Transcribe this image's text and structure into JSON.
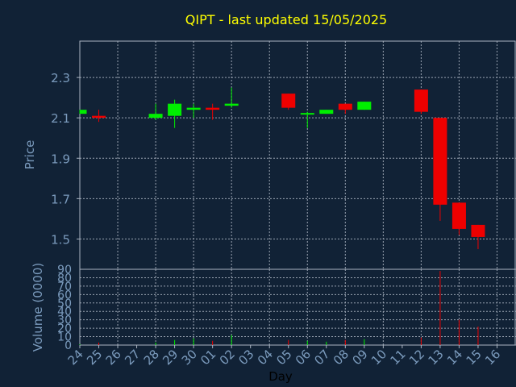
{
  "chart_data": {
    "type": "candlestick",
    "title": "QIPT - last updated 15/05/2025",
    "xlabel": "Day",
    "ylabel_price": "Price",
    "ylabel_volume": "Volume (0000)",
    "x_tick_labels": [
      "24",
      "25",
      "26",
      "27",
      "28",
      "29",
      "30",
      "01",
      "02",
      "03",
      "04",
      "05",
      "06",
      "07",
      "08",
      "09",
      "10",
      "11",
      "12",
      "13",
      "14",
      "15",
      "16"
    ],
    "price_ylim": [
      1.35,
      2.48
    ],
    "price_ticks": [
      1.5,
      1.7,
      1.9,
      2.1,
      2.3
    ],
    "price_tick_labels": [
      "1.5",
      "1.7",
      "1.9",
      "2.1",
      "2.3"
    ],
    "volume_ylim": [
      0,
      90
    ],
    "volume_ticks": [
      0,
      10,
      20,
      30,
      40,
      50,
      60,
      70,
      80,
      90
    ],
    "volume_tick_labels": [
      "0",
      "10",
      "20",
      "30",
      "40",
      "50",
      "60",
      "70",
      "80",
      "90"
    ],
    "grid": true,
    "colors": {
      "background": "#112236",
      "up": "#00ee00",
      "down": "#ee0000",
      "title": "#ffff00",
      "axis_text": "#7b9bbd",
      "axis_line": "#aab4c2",
      "grid": "#9aa4b2"
    },
    "candles": [
      {
        "day": "24",
        "open": 2.12,
        "close": 2.14,
        "high": 2.14,
        "low": 2.12,
        "volume": 1
      },
      {
        "day": "25",
        "open": 2.11,
        "close": 2.1,
        "high": 2.14,
        "low": 2.08,
        "volume": 3
      },
      {
        "day": "28",
        "open": 2.1,
        "close": 2.12,
        "high": 2.17,
        "low": 2.09,
        "volume": 3
      },
      {
        "day": "29",
        "open": 2.11,
        "close": 2.17,
        "high": 2.19,
        "low": 2.05,
        "volume": 6
      },
      {
        "day": "30",
        "open": 2.14,
        "close": 2.15,
        "high": 2.17,
        "low": 2.1,
        "volume": 8
      },
      {
        "day": "01",
        "open": 2.15,
        "close": 2.14,
        "high": 2.17,
        "low": 2.09,
        "volume": 5
      },
      {
        "day": "02",
        "open": 2.16,
        "close": 2.17,
        "high": 2.25,
        "low": 2.15,
        "volume": 12
      },
      {
        "day": "05",
        "open": 2.22,
        "close": 2.15,
        "high": 2.22,
        "low": 2.14,
        "volume": 6
      },
      {
        "day": "06",
        "open": 2.12,
        "close": 2.12,
        "high": 2.13,
        "low": 2.05,
        "volume": 5
      },
      {
        "day": "07",
        "open": 2.12,
        "close": 2.14,
        "high": 2.14,
        "low": 2.12,
        "volume": 4
      },
      {
        "day": "08",
        "open": 2.17,
        "close": 2.14,
        "high": 2.17,
        "low": 2.12,
        "volume": 6
      },
      {
        "day": "09",
        "open": 2.14,
        "close": 2.18,
        "high": 2.18,
        "low": 2.14,
        "volume": 7
      },
      {
        "day": "12",
        "open": 2.24,
        "close": 2.13,
        "high": 2.24,
        "low": 2.12,
        "volume": 9
      },
      {
        "day": "13",
        "open": 2.1,
        "close": 1.67,
        "high": 2.1,
        "low": 1.59,
        "volume": 88
      },
      {
        "day": "14",
        "open": 1.68,
        "close": 1.55,
        "high": 1.68,
        "low": 1.52,
        "volume": 30
      },
      {
        "day": "15",
        "open": 1.57,
        "close": 1.51,
        "high": 1.57,
        "low": 1.45,
        "volume": 22
      }
    ]
  }
}
